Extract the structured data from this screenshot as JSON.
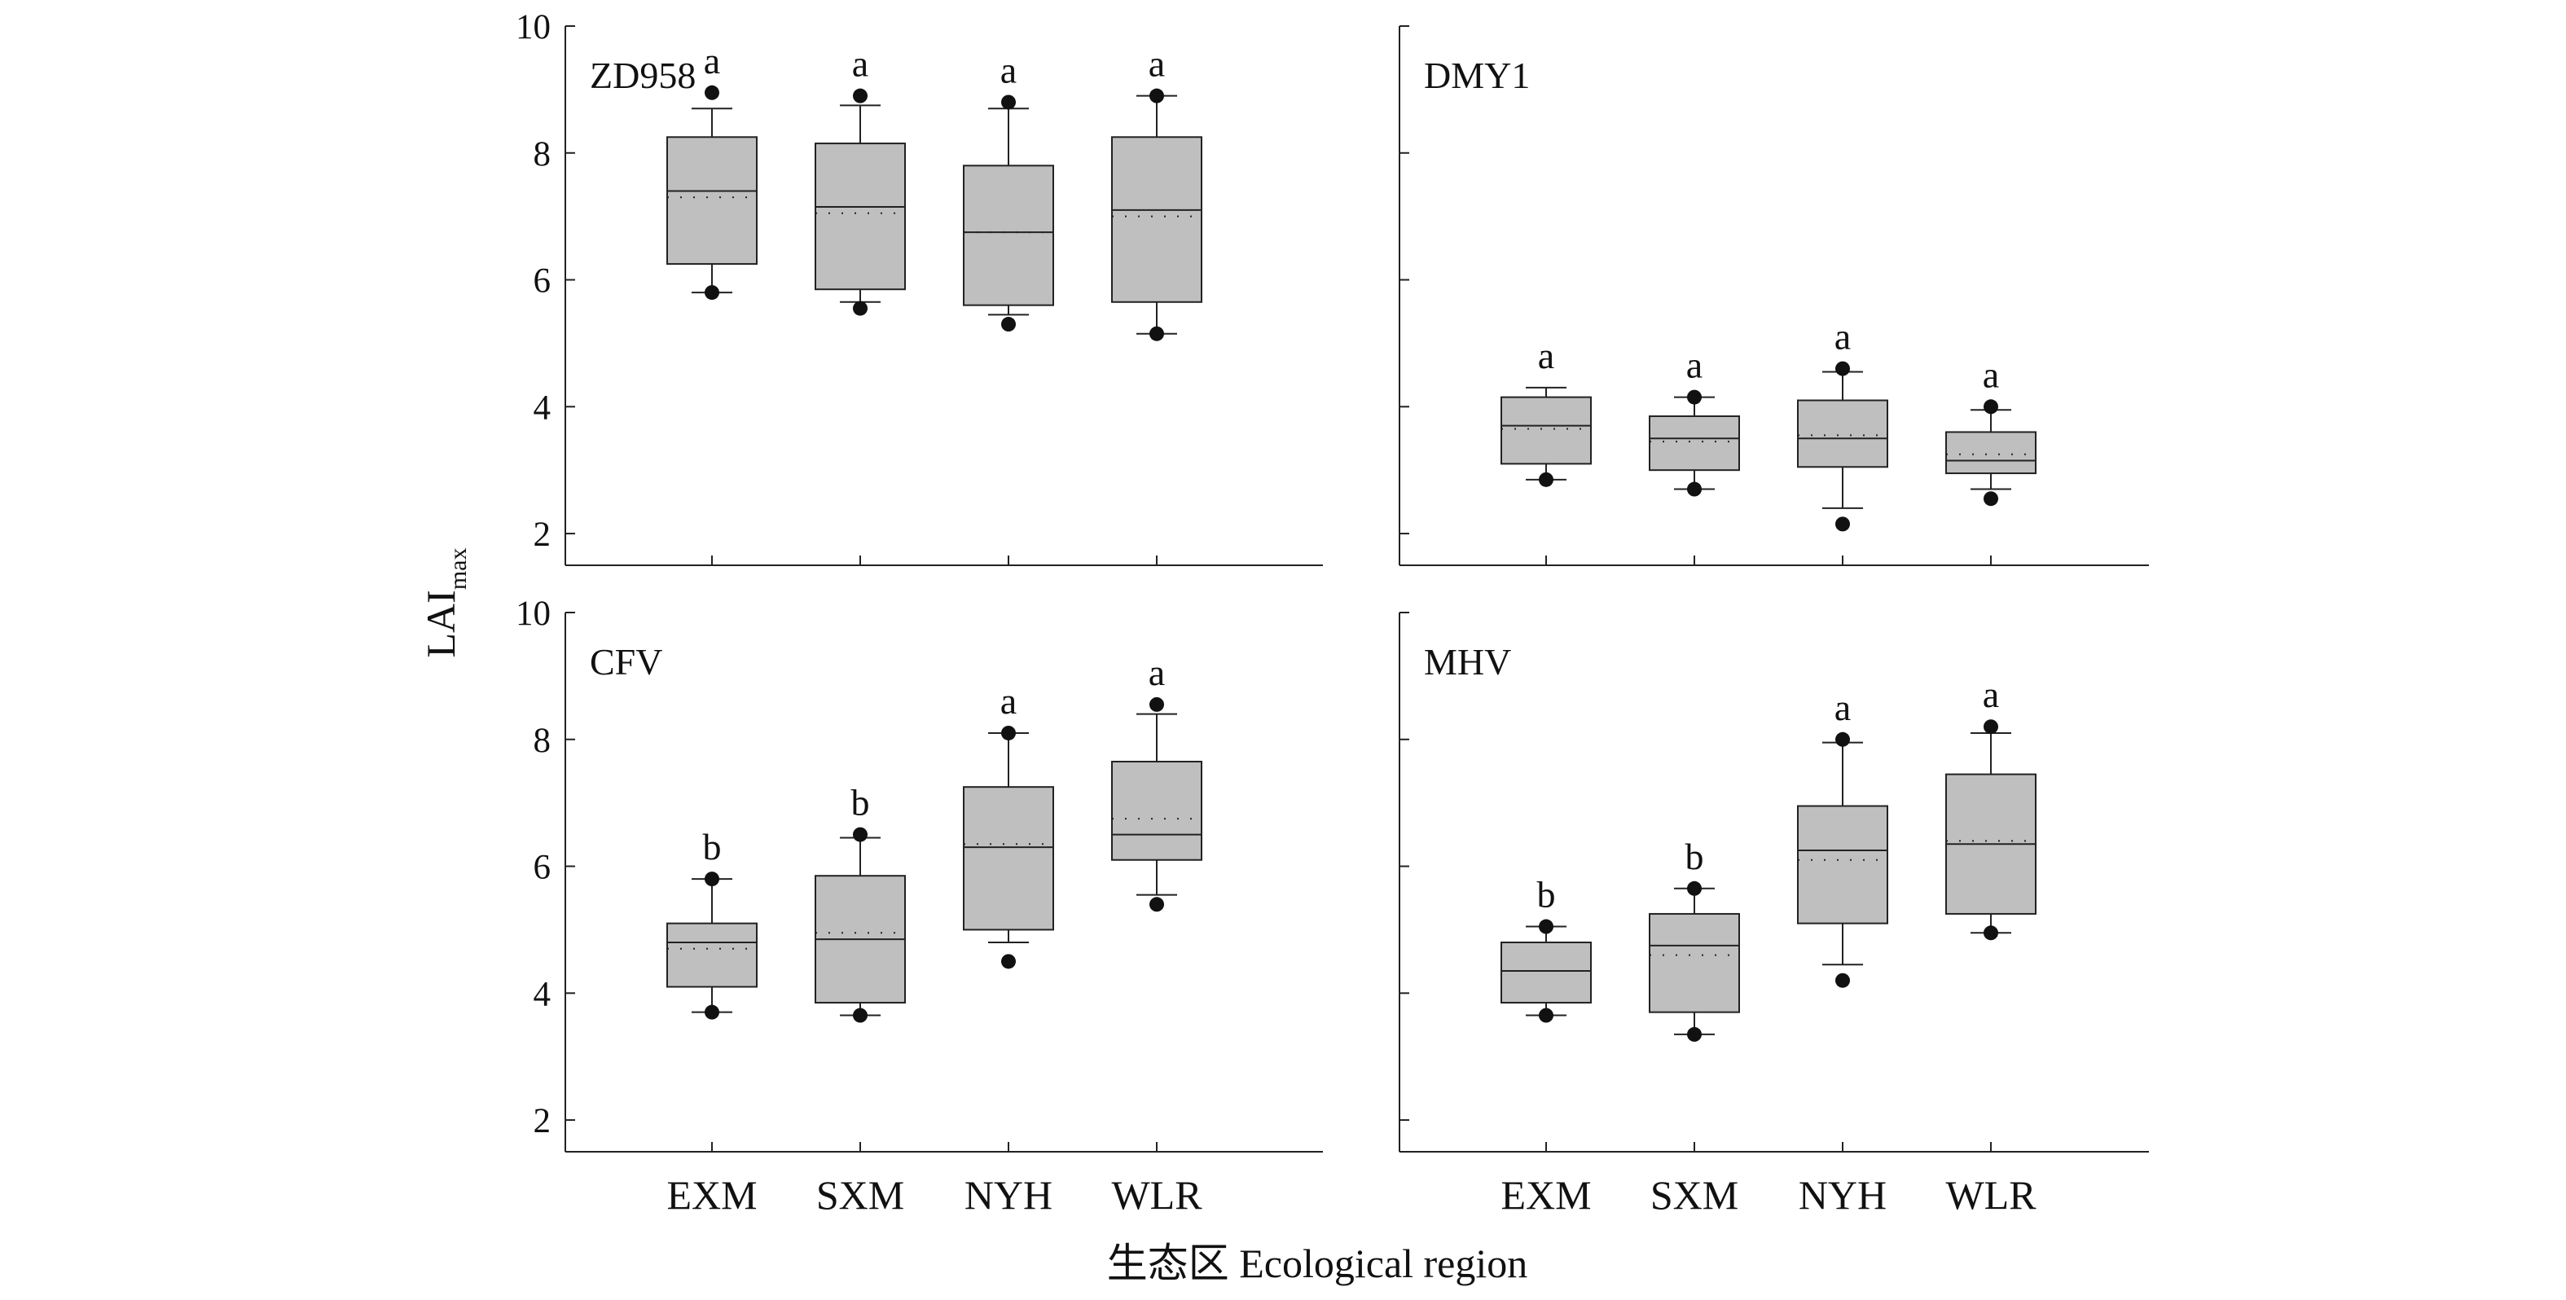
{
  "chart_data": {
    "type": "box",
    "xlabel": "生态区 Ecological region",
    "ylabel": "LAI",
    "ylabel_subscript": "max",
    "categories": [
      "EXM",
      "SXM",
      "NYH",
      "WLR"
    ],
    "ylim": [
      1.5,
      10
    ],
    "yticks": [
      2,
      4,
      6,
      8,
      10
    ],
    "colors": {
      "box_fill": "#bfbfbf",
      "stroke": "#222222",
      "outlier": "#111111"
    },
    "panels": [
      {
        "name": "ZD958",
        "boxes": [
          {
            "category": "EXM",
            "whisker_low": 5.8,
            "q1": 6.25,
            "median": 7.4,
            "mean": 7.3,
            "q3": 8.25,
            "whisker_high": 8.7,
            "outliers": [
              5.8,
              8.95
            ],
            "letter": "a"
          },
          {
            "category": "SXM",
            "whisker_low": 5.65,
            "q1": 5.85,
            "median": 7.15,
            "mean": 7.05,
            "q3": 8.15,
            "whisker_high": 8.75,
            "outliers": [
              5.55,
              8.9
            ],
            "letter": "a"
          },
          {
            "category": "NYH",
            "whisker_low": 5.45,
            "q1": 5.6,
            "median": 6.75,
            "mean": 6.75,
            "q3": 7.8,
            "whisker_high": 8.7,
            "outliers": [
              5.3,
              8.8
            ],
            "letter": "a"
          },
          {
            "category": "WLR",
            "whisker_low": 5.15,
            "q1": 5.65,
            "median": 7.1,
            "mean": 7.0,
            "q3": 8.25,
            "whisker_high": 8.9,
            "outliers": [
              5.15,
              8.9
            ],
            "letter": "a"
          }
        ]
      },
      {
        "name": "DMY1",
        "boxes": [
          {
            "category": "EXM",
            "whisker_low": 2.85,
            "q1": 3.1,
            "median": 3.7,
            "mean": 3.65,
            "q3": 4.15,
            "whisker_high": 4.3,
            "outliers": [
              2.85
            ],
            "letter": "a"
          },
          {
            "category": "SXM",
            "whisker_low": 2.7,
            "q1": 3.0,
            "median": 3.5,
            "mean": 3.45,
            "q3": 3.85,
            "whisker_high": 4.15,
            "outliers": [
              2.7,
              4.15
            ],
            "letter": "a"
          },
          {
            "category": "NYH",
            "whisker_low": 2.4,
            "q1": 3.05,
            "median": 3.5,
            "mean": 3.55,
            "q3": 4.1,
            "whisker_high": 4.55,
            "outliers": [
              2.15,
              4.6
            ],
            "letter": "a"
          },
          {
            "category": "WLR",
            "whisker_low": 2.7,
            "q1": 2.95,
            "median": 3.15,
            "mean": 3.25,
            "q3": 3.6,
            "whisker_high": 3.95,
            "outliers": [
              2.55,
              4.0
            ],
            "letter": "a"
          }
        ]
      },
      {
        "name": "CFV",
        "boxes": [
          {
            "category": "EXM",
            "whisker_low": 3.7,
            "q1": 4.1,
            "median": 4.8,
            "mean": 4.7,
            "q3": 5.1,
            "whisker_high": 5.8,
            "outliers": [
              3.7,
              5.8
            ],
            "letter": "b"
          },
          {
            "category": "SXM",
            "whisker_low": 3.65,
            "q1": 3.85,
            "median": 4.85,
            "mean": 4.95,
            "q3": 5.85,
            "whisker_high": 6.45,
            "outliers": [
              3.65,
              6.5
            ],
            "letter": "b"
          },
          {
            "category": "NYH",
            "whisker_low": 4.8,
            "q1": 5.0,
            "median": 6.3,
            "mean": 6.35,
            "q3": 7.25,
            "whisker_high": 8.1,
            "outliers": [
              4.5,
              8.1
            ],
            "letter": "a"
          },
          {
            "category": "WLR",
            "whisker_low": 5.55,
            "q1": 6.1,
            "median": 6.5,
            "mean": 6.75,
            "q3": 7.65,
            "whisker_high": 8.4,
            "outliers": [
              5.4,
              8.55
            ],
            "letter": "a"
          }
        ]
      },
      {
        "name": "MHV",
        "boxes": [
          {
            "category": "EXM",
            "whisker_low": 3.65,
            "q1": 3.85,
            "median": 4.35,
            "mean": 4.35,
            "q3": 4.8,
            "whisker_high": 5.05,
            "outliers": [
              3.65,
              5.05
            ],
            "letter": "b"
          },
          {
            "category": "SXM",
            "whisker_low": 3.35,
            "q1": 3.7,
            "median": 4.75,
            "mean": 4.6,
            "q3": 5.25,
            "whisker_high": 5.65,
            "outliers": [
              3.35,
              5.65
            ],
            "letter": "b"
          },
          {
            "category": "NYH",
            "whisker_low": 4.45,
            "q1": 5.1,
            "median": 6.25,
            "mean": 6.1,
            "q3": 6.95,
            "whisker_high": 7.95,
            "outliers": [
              4.2,
              8.0
            ],
            "letter": "a"
          },
          {
            "category": "WLR",
            "whisker_low": 4.95,
            "q1": 5.25,
            "median": 6.35,
            "mean": 6.4,
            "q3": 7.45,
            "whisker_high": 8.1,
            "outliers": [
              4.95,
              8.2
            ],
            "letter": "a"
          }
        ]
      }
    ]
  }
}
